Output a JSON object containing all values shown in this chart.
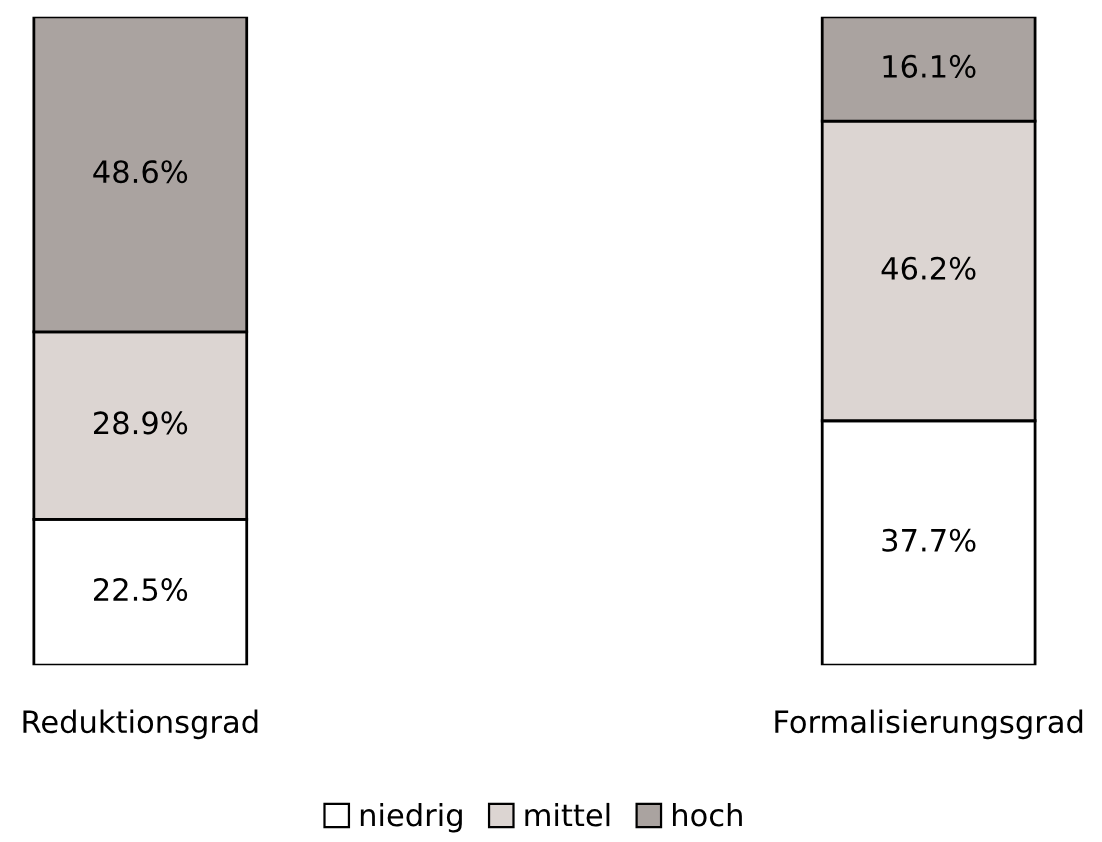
{
  "chart_data": {
    "type": "bar",
    "stacked": true,
    "categories": [
      "Reduktionsgrad",
      "Formalisierungsgrad"
    ],
    "legend": "bottom",
    "grid": false,
    "tick_labels": "x",
    "series": [
      {
        "name": "niedrig",
        "color": "#ffffff",
        "values": [
          22.5,
          37.7
        ],
        "value_labels": [
          "22.5%",
          "37.7%"
        ]
      },
      {
        "name": "mittel",
        "color": "#dcd5d2",
        "values": [
          28.9,
          46.2
        ],
        "value_labels": [
          "28.9%",
          "46.2%"
        ]
      },
      {
        "name": "hoch",
        "color": "#aaa3a0",
        "values": [
          48.6,
          16.1
        ],
        "value_labels": [
          "48.6%",
          "16.1%"
        ]
      }
    ]
  }
}
